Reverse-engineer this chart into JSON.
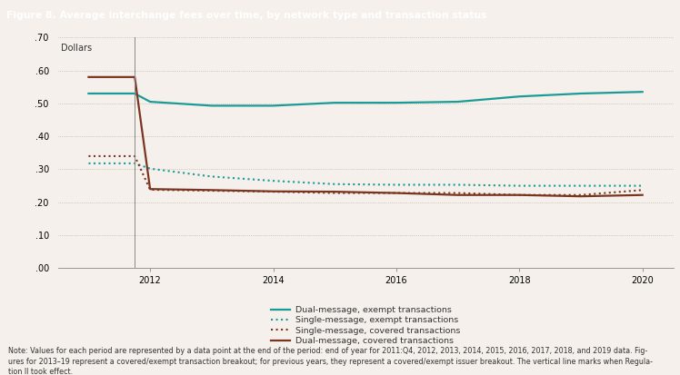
{
  "title": "Figure 8. Average interchange fees over time, by network type and transaction status",
  "title_bg": "#2a8c8e",
  "plot_bg": "#f5f0eb",
  "ylabel": "Dollars",
  "ylim": [
    0.0,
    0.7
  ],
  "yticks": [
    0.0,
    0.1,
    0.2,
    0.3,
    0.4,
    0.5,
    0.6,
    0.7
  ],
  "ytick_labels": [
    ".00",
    ".10",
    ".20",
    ".30",
    ".40",
    ".50",
    ".60",
    ".70"
  ],
  "note_line1": "Note: Values for each period are represented by a data point at the end of the period: end of year for 2011:Q4, 2012, 2013, 2014, 2015, 2016, 2017, 2018, and 2019 data. Fig-",
  "note_line2": "ures for 2013–19 represent a covered/exempt transaction breakout; for previous years, they represent a covered/exempt issuer breakout. The vertical line marks when Regula-",
  "note_line3": "tion II took effect.",
  "vertical_line_x": 2011.75,
  "xlim": [
    2010.5,
    2020.5
  ],
  "xticks": [
    2012,
    2014,
    2016,
    2018,
    2020
  ],
  "series": {
    "dual_exempt": {
      "label": "Dual-message, exempt transactions",
      "color": "#1a9b97",
      "linestyle": "solid",
      "linewidth": 1.6,
      "x": [
        2011.0,
        2011.75,
        2012.0,
        2013.0,
        2014.0,
        2015.0,
        2016.0,
        2017.0,
        2018.0,
        2019.0,
        2020.0
      ],
      "y": [
        0.53,
        0.53,
        0.505,
        0.493,
        0.493,
        0.502,
        0.502,
        0.505,
        0.521,
        0.53,
        0.535
      ]
    },
    "single_exempt": {
      "label": "Single-message, exempt transactions",
      "color": "#1a9b97",
      "linestyle": "dotted",
      "linewidth": 1.5,
      "x": [
        2011.0,
        2011.75,
        2012.0,
        2013.0,
        2014.0,
        2015.0,
        2016.0,
        2017.0,
        2018.0,
        2019.0,
        2020.0
      ],
      "y": [
        0.318,
        0.318,
        0.302,
        0.278,
        0.265,
        0.255,
        0.253,
        0.253,
        0.25,
        0.25,
        0.25
      ]
    },
    "single_covered": {
      "label": "Single-message, covered transactions",
      "color": "#7a3520",
      "linestyle": "dotted",
      "linewidth": 1.5,
      "x": [
        2011.0,
        2011.75,
        2012.0,
        2013.0,
        2014.0,
        2015.0,
        2016.0,
        2017.0,
        2018.0,
        2019.0,
        2020.0
      ],
      "y": [
        0.34,
        0.34,
        0.238,
        0.235,
        0.232,
        0.228,
        0.228,
        0.228,
        0.222,
        0.222,
        0.237
      ]
    },
    "dual_covered": {
      "label": "Dual-message, covered transactions",
      "color": "#7a3520",
      "linestyle": "solid",
      "linewidth": 1.6,
      "x": [
        2011.0,
        2011.75,
        2012.0,
        2013.0,
        2014.0,
        2015.0,
        2016.0,
        2017.0,
        2018.0,
        2019.0,
        2020.0
      ],
      "y": [
        0.58,
        0.58,
        0.24,
        0.237,
        0.233,
        0.232,
        0.228,
        0.222,
        0.222,
        0.218,
        0.222
      ]
    }
  },
  "note_fontsize": 5.8,
  "axis_fontsize": 7.0,
  "legend_fontsize": 6.8,
  "title_fontsize": 7.8
}
